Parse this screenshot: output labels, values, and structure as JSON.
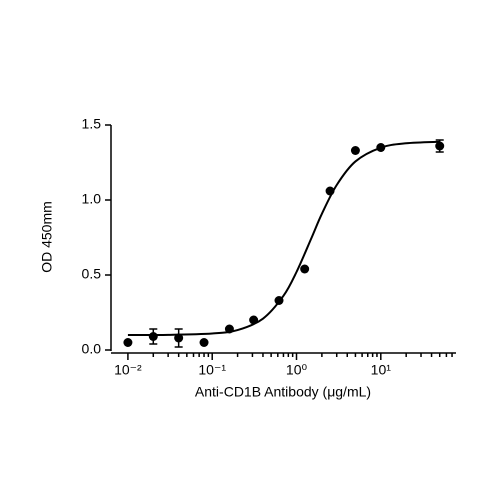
{
  "chart_data": {
    "type": "scatter",
    "x_label": "Anti-CD1B Antibody (μg/mL)",
    "y_label": "OD 450mm",
    "x_scale": "log",
    "color": "#000000",
    "x": [
      0.01,
      0.02,
      0.04,
      0.08,
      0.16,
      0.31,
      0.62,
      1.25,
      2.5,
      5,
      10,
      50
    ],
    "values": [
      0.05,
      0.09,
      0.08,
      0.05,
      0.14,
      0.2,
      0.33,
      0.54,
      1.06,
      1.33,
      1.35,
      1.36
    ],
    "errors": [
      null,
      0.05,
      0.06,
      null,
      null,
      null,
      null,
      null,
      null,
      null,
      null,
      0.04
    ],
    "curve": {
      "x": [
        0.01,
        0.03,
        0.1,
        0.2,
        0.4,
        0.7,
        1,
        1.5,
        2,
        3,
        5,
        10,
        20,
        50
      ],
      "y": [
        0.1,
        0.101,
        0.11,
        0.133,
        0.209,
        0.361,
        0.52,
        0.745,
        0.908,
        1.1,
        1.257,
        1.349,
        1.378,
        1.388
      ]
    },
    "xlim": [
      0.0063,
      78
    ],
    "ylim": [
      0,
      1.5
    ],
    "xticks": [
      {
        "value": 0.01,
        "label": "10⁻²"
      },
      {
        "value": 0.1,
        "label": "10⁻¹"
      },
      {
        "value": 1,
        "label": "10⁰"
      },
      {
        "value": 10,
        "label": "10¹"
      }
    ],
    "xminorticks": [
      0.02,
      0.03,
      0.04,
      0.05,
      0.06,
      0.07,
      0.08,
      0.09,
      0.2,
      0.3,
      0.4,
      0.5,
      0.6,
      0.7,
      0.8,
      0.9,
      2,
      3,
      4,
      5,
      6,
      7,
      8,
      9,
      20,
      30,
      40,
      50,
      60,
      70
    ],
    "yticks": [
      {
        "value": 0,
        "label": "0.0"
      },
      {
        "value": 0.5,
        "label": "0.5"
      },
      {
        "value": 1,
        "label": "1.0"
      },
      {
        "value": 1.5,
        "label": "1.5"
      }
    ]
  }
}
